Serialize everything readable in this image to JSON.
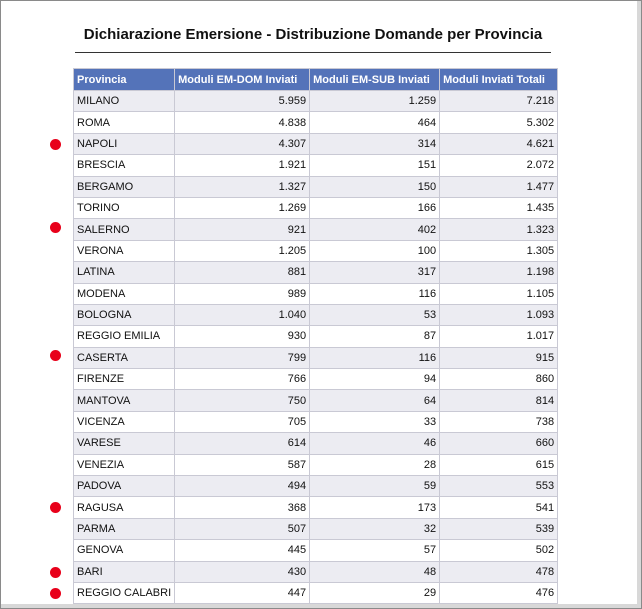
{
  "header": {
    "title": "Dichiarazione Emersione - Distribuzione Domande per Provincia"
  },
  "table": {
    "columns": [
      "Provincia",
      "Moduli EM-DOM Inviati",
      "Moduli EM-SUB Inviati",
      "Moduli Inviati Totali"
    ],
    "rows": [
      [
        "MILANO",
        "5.959",
        "1.259",
        "7.218"
      ],
      [
        "ROMA",
        "4.838",
        "464",
        "5.302"
      ],
      [
        "NAPOLI",
        "4.307",
        "314",
        "4.621"
      ],
      [
        "BRESCIA",
        "1.921",
        "151",
        "2.072"
      ],
      [
        "BERGAMO",
        "1.327",
        "150",
        "1.477"
      ],
      [
        "TORINO",
        "1.269",
        "166",
        "1.435"
      ],
      [
        "SALERNO",
        "921",
        "402",
        "1.323"
      ],
      [
        "VERONA",
        "1.205",
        "100",
        "1.305"
      ],
      [
        "LATINA",
        "881",
        "317",
        "1.198"
      ],
      [
        "MODENA",
        "989",
        "116",
        "1.105"
      ],
      [
        "BOLOGNA",
        "1.040",
        "53",
        "1.093"
      ],
      [
        "REGGIO EMILIA",
        "930",
        "87",
        "1.017"
      ],
      [
        "CASERTA",
        "799",
        "116",
        "915"
      ],
      [
        "FIRENZE",
        "766",
        "94",
        "860"
      ],
      [
        "MANTOVA",
        "750",
        "64",
        "814"
      ],
      [
        "VICENZA",
        "705",
        "33",
        "738"
      ],
      [
        "VARESE",
        "614",
        "46",
        "660"
      ],
      [
        "VENEZIA",
        "587",
        "28",
        "615"
      ],
      [
        "PADOVA",
        "494",
        "59",
        "553"
      ],
      [
        "RAGUSA",
        "368",
        "173",
        "541"
      ],
      [
        "PARMA",
        "507",
        "32",
        "539"
      ],
      [
        "GENOVA",
        "445",
        "57",
        "502"
      ],
      [
        "BARI",
        "430",
        "48",
        "478"
      ],
      [
        "REGGIO CALABRI",
        "447",
        "29",
        "476"
      ]
    ]
  }
}
